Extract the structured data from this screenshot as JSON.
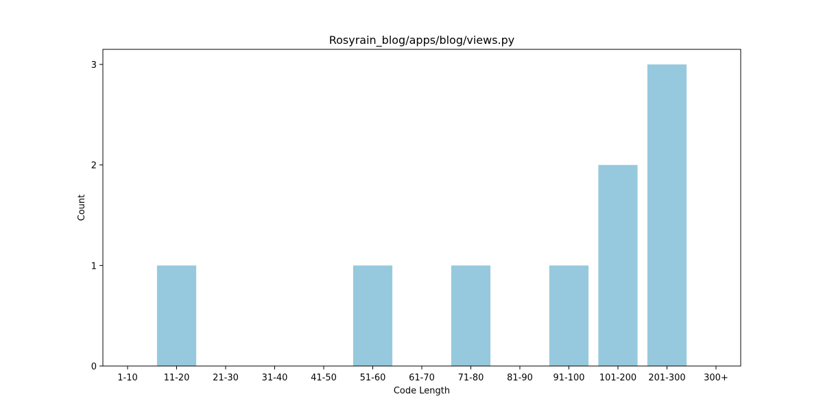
{
  "chart_data": {
    "type": "bar",
    "title": "Rosyrain_blog/apps/blog/views.py",
    "xlabel": "Code Length",
    "ylabel": "Count",
    "categories": [
      "1-10",
      "11-20",
      "21-30",
      "31-40",
      "41-50",
      "51-60",
      "61-70",
      "71-80",
      "81-90",
      "91-100",
      "101-200",
      "201-300",
      "300+"
    ],
    "values": [
      0,
      1,
      0,
      0,
      0,
      1,
      0,
      1,
      0,
      1,
      2,
      3,
      0
    ],
    "ylim": [
      0,
      3.15
    ],
    "yticks": [
      0,
      1,
      2,
      3
    ],
    "bar_color": "#96c9dd",
    "grid": false,
    "legend": "none"
  }
}
